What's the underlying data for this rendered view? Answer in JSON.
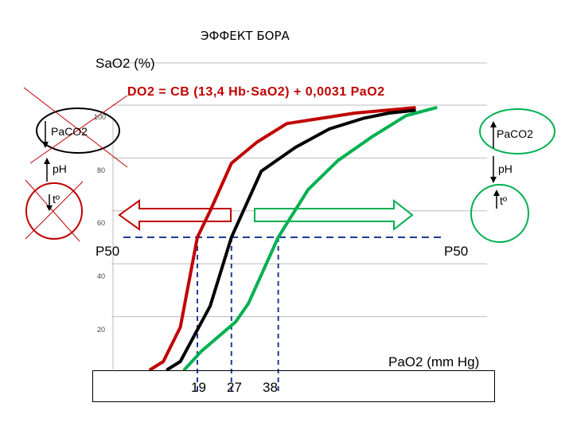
{
  "title": "ЭФФЕКТ БОРА",
  "ylabel": "SaO2 (%)",
  "formula": "DO2 = CB (13,4 Hb·SaO2) + 0,0031 PaO2",
  "xlabel": "PaO2 (mm Hg)",
  "p50_left": "P50",
  "p50_right": "P50",
  "left_side": {
    "paco2": "PaCO2",
    "ph": "pH",
    "temp": "tº"
  },
  "right_side": {
    "paco2": "PaCO2",
    "ph": "pH",
    "temp": "tº"
  },
  "colors": {
    "left_shift": "#c00000",
    "normal": "#000000",
    "right_shift": "#00b050",
    "p50_line": "#1f3a93",
    "right_circle": "#00b050",
    "left_cross": "#c00000"
  },
  "chart_data": {
    "type": "line",
    "title": "ЭФФЕКТ БОРА",
    "ylabel": "SaO2 (%)",
    "xlabel": "PaO2 (mm Hg)",
    "ylim": [
      0,
      100
    ],
    "y_ticks": [
      "20",
      "40",
      "60",
      "80",
      "100"
    ],
    "x_ticks": [
      "19",
      "27",
      "38"
    ],
    "p50": 50,
    "grid": true,
    "series": [
      {
        "color": "#c00000",
        "x": [
          8,
          11,
          15,
          19,
          22,
          27,
          33,
          40,
          48,
          56,
          63,
          70
        ],
        "y": [
          0,
          3,
          16,
          50,
          60,
          78,
          86,
          93,
          95,
          97,
          98,
          99
        ]
      },
      {
        "color": "#000000",
        "x": [
          12,
          15,
          22,
          27,
          34,
          42,
          50,
          58,
          64,
          70
        ],
        "y": [
          0,
          3,
          24,
          50,
          75,
          84,
          91,
          95,
          97,
          98
        ]
      },
      {
        "color": "#00b050",
        "x": [
          16,
          20,
          28,
          31,
          38,
          45,
          52,
          60,
          68,
          75
        ],
        "y": [
          0,
          7,
          18,
          25,
          50,
          68,
          79,
          88,
          96,
          99
        ]
      }
    ]
  }
}
